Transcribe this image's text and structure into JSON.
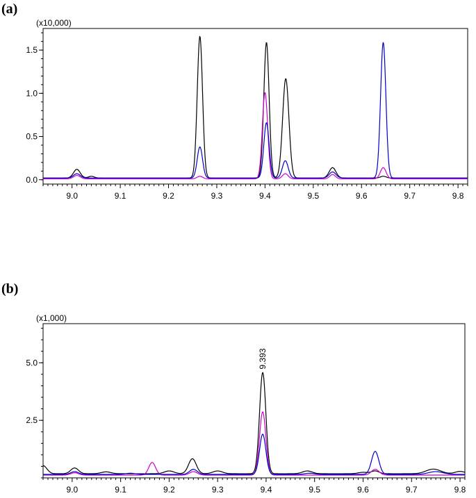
{
  "panels": [
    {
      "label": "(a)",
      "scale_label": "(x10,000)"
    },
    {
      "label": "(b)",
      "scale_label": "(x1,000)"
    }
  ],
  "chart_data": [
    {
      "type": "line",
      "title": "",
      "xlabel": "",
      "ylabel": "",
      "scale_label": "(x10,000)",
      "xlim": [
        8.94,
        9.82
      ],
      "ylim": [
        -0.05,
        1.75
      ],
      "x_ticks": [
        "9.0",
        "9.1",
        "9.2",
        "9.3",
        "9.4",
        "9.5",
        "9.6",
        "9.7",
        "9.8"
      ],
      "y_ticks": [
        "0.0",
        "0.5",
        "1.0",
        "1.5"
      ],
      "grid": false,
      "legend": "none",
      "series": [
        {
          "color": "#000000",
          "baseline": 0.02,
          "peaks": [
            {
              "x": 9.01,
              "height": 0.1,
              "width": 0.007
            },
            {
              "x": 9.04,
              "height": 0.02,
              "width": 0.006
            },
            {
              "x": 9.265,
              "height": 1.64,
              "width": 0.0055
            },
            {
              "x": 9.403,
              "height": 1.57,
              "width": 0.0055
            },
            {
              "x": 9.443,
              "height": 1.15,
              "width": 0.0065
            },
            {
              "x": 9.54,
              "height": 0.12,
              "width": 0.007
            },
            {
              "x": 9.645,
              "height": 0.02,
              "width": 0.006
            }
          ]
        },
        {
          "color": "#cc00cc",
          "baseline": 0.01,
          "peaks": [
            {
              "x": 9.01,
              "height": 0.04,
              "width": 0.007
            },
            {
              "x": 9.265,
              "height": 0.03,
              "width": 0.006
            },
            {
              "x": 9.4,
              "height": 1.0,
              "width": 0.0055
            },
            {
              "x": 9.442,
              "height": 0.06,
              "width": 0.006
            },
            {
              "x": 9.54,
              "height": 0.05,
              "width": 0.006
            },
            {
              "x": 9.645,
              "height": 0.13,
              "width": 0.006
            }
          ]
        },
        {
          "color": "#0000cc",
          "baseline": 0.02,
          "peaks": [
            {
              "x": 9.01,
              "height": 0.05,
              "width": 0.007
            },
            {
              "x": 9.265,
              "height": 0.36,
              "width": 0.0055
            },
            {
              "x": 9.403,
              "height": 0.64,
              "width": 0.0055
            },
            {
              "x": 9.442,
              "height": 0.2,
              "width": 0.006
            },
            {
              "x": 9.54,
              "height": 0.07,
              "width": 0.007
            },
            {
              "x": 9.645,
              "height": 1.57,
              "width": 0.0055
            }
          ]
        }
      ]
    },
    {
      "type": "line",
      "title": "",
      "xlabel": "",
      "ylabel": "",
      "scale_label": "(x1,000)",
      "xlim": [
        8.94,
        9.81
      ],
      "ylim": [
        0,
        6.7
      ],
      "x_ticks": [
        "9.0",
        "9.1",
        "9.2",
        "9.3",
        "9.4",
        "9.5",
        "9.6",
        "9.7",
        "9.8"
      ],
      "y_ticks": [
        "2.5",
        "5.0"
      ],
      "grid": false,
      "legend": "none",
      "annotations": [
        {
          "x": 9.393,
          "y": 4.6,
          "text": "9.393"
        }
      ],
      "series": [
        {
          "color": "#000000",
          "baseline": 0.18,
          "peaks": [
            {
              "x": 8.94,
              "height": 0.35,
              "width": 0.008
            },
            {
              "x": 9.005,
              "height": 0.25,
              "width": 0.008
            },
            {
              "x": 9.07,
              "height": 0.08,
              "width": 0.01
            },
            {
              "x": 9.2,
              "height": 0.12,
              "width": 0.01
            },
            {
              "x": 9.248,
              "height": 0.65,
              "width": 0.008
            },
            {
              "x": 9.3,
              "height": 0.12,
              "width": 0.01
            },
            {
              "x": 9.393,
              "height": 4.4,
              "width": 0.0065
            },
            {
              "x": 9.485,
              "height": 0.12,
              "width": 0.01
            },
            {
              "x": 9.6,
              "height": 0.06,
              "width": 0.01
            },
            {
              "x": 9.625,
              "height": 0.12,
              "width": 0.008
            },
            {
              "x": 9.745,
              "height": 0.2,
              "width": 0.015
            },
            {
              "x": 9.8,
              "height": 0.1,
              "width": 0.01
            }
          ]
        },
        {
          "color": "#cc00cc",
          "baseline": 0.12,
          "peaks": [
            {
              "x": 9.005,
              "height": 0.1,
              "width": 0.008
            },
            {
              "x": 9.165,
              "height": 0.55,
              "width": 0.007
            },
            {
              "x": 9.25,
              "height": 0.15,
              "width": 0.008
            },
            {
              "x": 9.393,
              "height": 2.75,
              "width": 0.0065
            },
            {
              "x": 9.625,
              "height": 0.25,
              "width": 0.008
            }
          ]
        },
        {
          "color": "#0000cc",
          "baseline": 0.15,
          "peaks": [
            {
              "x": 9.005,
              "height": 0.12,
              "width": 0.008
            },
            {
              "x": 9.12,
              "height": 0.05,
              "width": 0.01
            },
            {
              "x": 9.25,
              "height": 0.22,
              "width": 0.008
            },
            {
              "x": 9.393,
              "height": 1.75,
              "width": 0.0065
            },
            {
              "x": 9.49,
              "height": 0.05,
              "width": 0.01
            },
            {
              "x": 9.625,
              "height": 1.0,
              "width": 0.0075
            },
            {
              "x": 9.75,
              "height": 0.12,
              "width": 0.015
            }
          ]
        }
      ]
    }
  ]
}
